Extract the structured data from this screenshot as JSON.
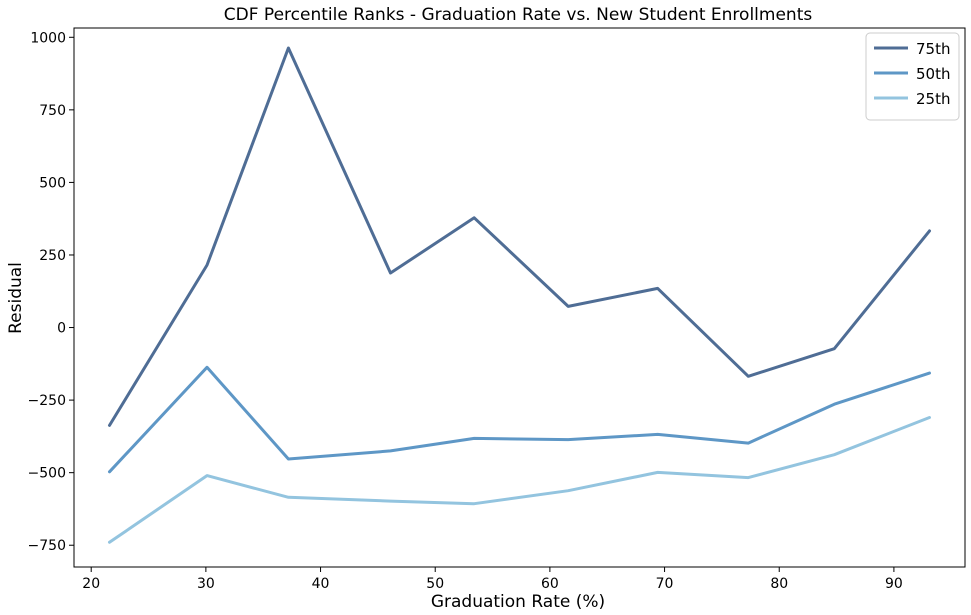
{
  "chart_data": {
    "type": "line",
    "title": "CDF Percentile Ranks - Graduation Rate vs. New Student Enrollments",
    "xlabel": "Graduation Rate (%)",
    "ylabel": "Residual",
    "xlim": [
      18.5,
      96.2
    ],
    "ylim": [
      -825,
      1032
    ],
    "xticks": [
      20,
      30,
      40,
      50,
      60,
      70,
      80,
      90
    ],
    "yticks": [
      -750,
      -500,
      -250,
      0,
      250,
      500,
      750,
      1000
    ],
    "xtick_labels": [
      "20",
      "30",
      "40",
      "50",
      "60",
      "70",
      "80",
      "90"
    ],
    "ytick_labels": [
      "−750",
      "−500",
      "−250",
      "0",
      "250",
      "500",
      "750",
      "1000"
    ],
    "grid": false,
    "legend": "top-right",
    "series": [
      {
        "name": "75th",
        "color": "#4f6d95",
        "x": [
          21.6,
          30.1,
          37.2,
          46.1,
          53.4,
          61.6,
          69.4,
          77.3,
          84.8,
          93.1
        ],
        "y": [
          -337,
          215,
          963,
          188,
          378,
          73,
          135,
          -168,
          -73,
          333
        ]
      },
      {
        "name": "50th",
        "color": "#5e97c6",
        "x": [
          21.6,
          30.1,
          37.2,
          46.1,
          53.4,
          61.6,
          69.4,
          77.3,
          84.8,
          93.1
        ],
        "y": [
          -497,
          -137,
          -453,
          -425,
          -382,
          -386,
          -368,
          -398,
          -264,
          -157
        ]
      },
      {
        "name": "25th",
        "color": "#93c4df",
        "x": [
          21.6,
          30.1,
          37.2,
          46.1,
          53.4,
          61.6,
          69.4,
          77.3,
          84.8,
          93.1
        ],
        "y": [
          -740,
          -510,
          -585,
          -598,
          -607,
          -562,
          -499,
          -517,
          -438,
          -310
        ]
      }
    ]
  }
}
